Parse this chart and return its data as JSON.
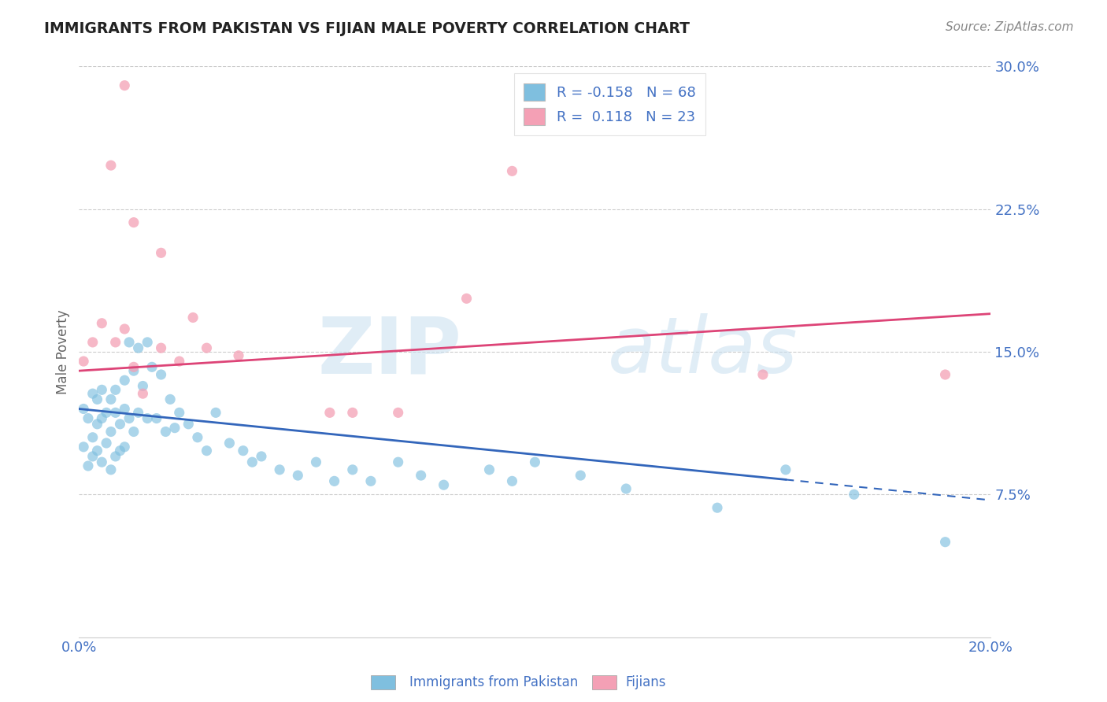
{
  "title": "IMMIGRANTS FROM PAKISTAN VS FIJIAN MALE POVERTY CORRELATION CHART",
  "source_text": "Source: ZipAtlas.com",
  "ylabel": "Male Poverty",
  "legend_entry1": "Immigrants from Pakistan",
  "legend_entry2": "Fijians",
  "R1": -0.158,
  "N1": 68,
  "R2": 0.118,
  "N2": 23,
  "color1": "#7fbfdf",
  "color2": "#f4a0b5",
  "trend_color1": "#3366bb",
  "trend_color2": "#dd4477",
  "xlim": [
    0.0,
    0.2
  ],
  "ylim": [
    0.0,
    0.3
  ],
  "ytick_positions": [
    0.075,
    0.15,
    0.225,
    0.3
  ],
  "ytick_labels": [
    "7.5%",
    "15.0%",
    "22.5%",
    "30.0%"
  ],
  "axis_color": "#4472c4",
  "trend1_x_start": 0.0,
  "trend1_x_end": 0.2,
  "trend1_y_start": 0.12,
  "trend1_y_end": 0.072,
  "trend1_solid_end": 0.155,
  "trend2_x_start": 0.0,
  "trend2_x_end": 0.2,
  "trend2_y_start": 0.14,
  "trend2_y_end": 0.17,
  "blue_scatter_x": [
    0.001,
    0.001,
    0.002,
    0.002,
    0.003,
    0.003,
    0.003,
    0.004,
    0.004,
    0.004,
    0.005,
    0.005,
    0.005,
    0.006,
    0.006,
    0.007,
    0.007,
    0.007,
    0.008,
    0.008,
    0.008,
    0.009,
    0.009,
    0.01,
    0.01,
    0.01,
    0.011,
    0.011,
    0.012,
    0.012,
    0.013,
    0.013,
    0.014,
    0.015,
    0.015,
    0.016,
    0.017,
    0.018,
    0.019,
    0.02,
    0.021,
    0.022,
    0.024,
    0.026,
    0.028,
    0.03,
    0.033,
    0.036,
    0.038,
    0.04,
    0.044,
    0.048,
    0.052,
    0.056,
    0.06,
    0.064,
    0.07,
    0.075,
    0.08,
    0.09,
    0.095,
    0.1,
    0.11,
    0.12,
    0.14,
    0.155,
    0.17,
    0.19
  ],
  "blue_scatter_y": [
    0.12,
    0.1,
    0.115,
    0.09,
    0.128,
    0.105,
    0.095,
    0.125,
    0.112,
    0.098,
    0.13,
    0.115,
    0.092,
    0.118,
    0.102,
    0.125,
    0.108,
    0.088,
    0.13,
    0.118,
    0.095,
    0.112,
    0.098,
    0.135,
    0.12,
    0.1,
    0.155,
    0.115,
    0.14,
    0.108,
    0.152,
    0.118,
    0.132,
    0.155,
    0.115,
    0.142,
    0.115,
    0.138,
    0.108,
    0.125,
    0.11,
    0.118,
    0.112,
    0.105,
    0.098,
    0.118,
    0.102,
    0.098,
    0.092,
    0.095,
    0.088,
    0.085,
    0.092,
    0.082,
    0.088,
    0.082,
    0.092,
    0.085,
    0.08,
    0.088,
    0.082,
    0.092,
    0.085,
    0.078,
    0.068,
    0.088,
    0.075,
    0.05
  ],
  "pink_scatter_x": [
    0.001,
    0.003,
    0.005,
    0.008,
    0.01,
    0.012,
    0.014,
    0.018,
    0.022,
    0.028,
    0.035,
    0.055,
    0.07,
    0.01,
    0.007,
    0.012,
    0.018,
    0.025,
    0.06,
    0.085,
    0.095,
    0.15,
    0.19
  ],
  "pink_scatter_y": [
    0.145,
    0.155,
    0.165,
    0.155,
    0.162,
    0.142,
    0.128,
    0.152,
    0.145,
    0.152,
    0.148,
    0.118,
    0.118,
    0.29,
    0.248,
    0.218,
    0.202,
    0.168,
    0.118,
    0.178,
    0.245,
    0.138,
    0.138
  ]
}
